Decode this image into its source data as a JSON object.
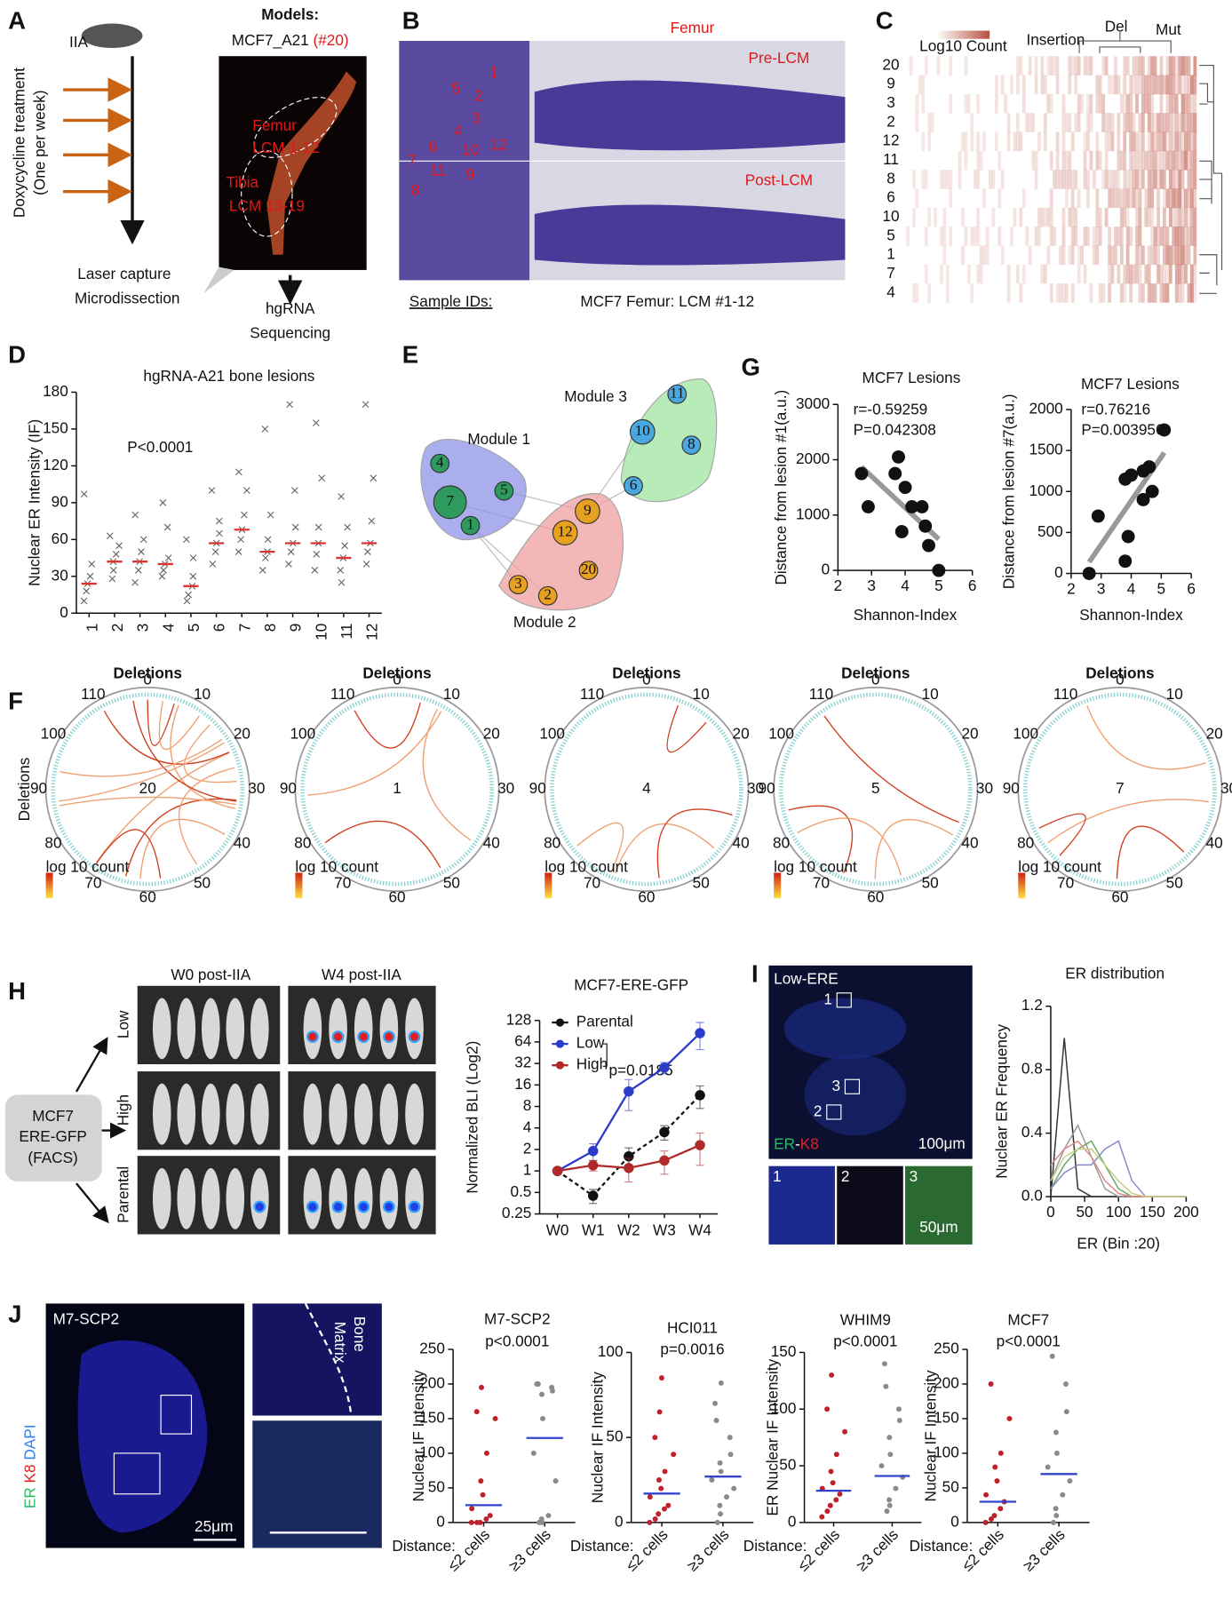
{
  "panel_labels": {
    "a": "A",
    "b": "B",
    "c": "C",
    "d": "D",
    "e": "E",
    "f": "F",
    "g": "G",
    "h": "H",
    "i": "I",
    "j": "J"
  },
  "panel_a": {
    "mouse_label": "IIA",
    "treatment": "Doxycycline treatment",
    "frequency": "(One per week)",
    "step1_line1": "Laser capture",
    "step1_line2": "Microdissection",
    "models_title": "Models:",
    "model_name": "MCF7_A21",
    "model_id": "(#20)",
    "femur_label": "Femur",
    "femur_lcm": "LCM 1-12",
    "tibia_label": "Tibia",
    "tibia_lcm": "LCM 13-19",
    "step2_line1": "hgRNA",
    "step2_line2": "Sequencing"
  },
  "panel_b": {
    "bone": "Femur",
    "pre": "Pre-LCM",
    "post": "Post-LCM",
    "sample_ids": "Sample IDs:",
    "caption": "MCF7 Femur: LCM #1-12",
    "lesions": [
      1,
      2,
      3,
      4,
      5,
      6,
      7,
      8,
      9,
      10,
      11,
      12
    ]
  },
  "panel_c": {
    "legend": "Log10 Count",
    "insertion": "Insertion",
    "deletion": "Del",
    "mutation": "Mut",
    "rows": [
      20,
      9,
      3,
      2,
      12,
      11,
      8,
      6,
      10,
      5,
      1,
      7,
      4
    ]
  },
  "panel_e": {
    "modules": [
      {
        "name": "Module 1",
        "color": "#8f94e6",
        "node_color": "#2e9a5e",
        "nodes": [
          4,
          7,
          5,
          1
        ]
      },
      {
        "name": "Module 2",
        "color": "#f0a0a0",
        "node_color": "#e8a020",
        "nodes": [
          9,
          12,
          3,
          2,
          20
        ]
      },
      {
        "name": "Module 3",
        "color": "#9fe59f",
        "node_color": "#4aa8e0",
        "nodes": [
          11,
          10,
          8,
          6
        ]
      }
    ]
  },
  "panel_f": {
    "side_label": "Deletions",
    "plot_title": "Deletions",
    "legend": "log 10 count",
    "scale_ticks": [
      0,
      10,
      20,
      30,
      40,
      50,
      60,
      70,
      80,
      90,
      100,
      110
    ],
    "samples": [
      20,
      1,
      4,
      5,
      7
    ]
  },
  "panel_h": {
    "w0": "W0 post-IIA",
    "w4": "W4 post-IIA",
    "rows": [
      "Low",
      "High",
      "Parental"
    ],
    "box_line1": "MCF7",
    "box_line2": "ERE-GFP",
    "box_line3": "(FACS)"
  },
  "panel_i": {
    "image_title": "Low-ERE",
    "insets": [
      "1",
      "2",
      "3"
    ],
    "stain_er": "ER",
    "stain_dash": "-",
    "stain_k8": "K8",
    "scale_large": "100μm",
    "scale_small": "50μm"
  },
  "panel_j": {
    "image_title": "M7-SCP2",
    "stain_er": "ER",
    "stain_k8": "K8",
    "stain_dapi": "DAPI",
    "scale": "25μm",
    "bone": "Bone",
    "matrix": "Matrix"
  },
  "chart_data": [
    {
      "type": "strip",
      "title": "hgRNA-A21 bone lesions",
      "ylabel": "Nuclear ER Intensity (IF)",
      "annotations": [
        "P<0.0001"
      ],
      "marker": "x",
      "point_color": "#666666",
      "line_color": "#dd3333",
      "categories": [
        "1",
        "2",
        "3",
        "4",
        "5",
        "6",
        "7",
        "8",
        "9",
        "10",
        "11",
        "12"
      ],
      "values": [
        24,
        42,
        42,
        40,
        22,
        57,
        68,
        50,
        57,
        57,
        45,
        57
      ],
      "points": [
        [
          10,
          18,
          24,
          30,
          40,
          97
        ],
        [
          28,
          35,
          42,
          48,
          55,
          63
        ],
        [
          25,
          35,
          42,
          50,
          60,
          80
        ],
        [
          30,
          35,
          40,
          45,
          70,
          90
        ],
        [
          10,
          15,
          22,
          30,
          45,
          60
        ],
        [
          40,
          50,
          57,
          65,
          75,
          100
        ],
        [
          50,
          60,
          68,
          80,
          100,
          115
        ],
        [
          35,
          45,
          50,
          60,
          80,
          150
        ],
        [
          40,
          50,
          57,
          70,
          100,
          170
        ],
        [
          35,
          48,
          57,
          70,
          110,
          155
        ],
        [
          25,
          35,
          45,
          55,
          70,
          95
        ],
        [
          40,
          50,
          57,
          75,
          110,
          170
        ]
      ],
      "ylim": [
        0,
        180
      ],
      "yticks": [
        0,
        30,
        60,
        90,
        120,
        150,
        180
      ]
    },
    {
      "type": "scatter",
      "title": "MCF7 Lesions",
      "annotations": [
        "r=-0.59259",
        "P=0.042308"
      ],
      "xlabel": "Shannon-Index",
      "ylabel": "Distance from lesion #1(a.u.)",
      "x": [
        2.7,
        2.9,
        3.7,
        3.8,
        3.9,
        4.0,
        4.2,
        4.5,
        4.6,
        4.7,
        5.0
      ],
      "y": [
        1750,
        1150,
        1750,
        2050,
        700,
        1500,
        1150,
        1150,
        800,
        450,
        0
      ],
      "xlim": [
        2,
        6
      ],
      "xticks": [
        2,
        3,
        4,
        5,
        6
      ],
      "ylim": [
        0,
        3000
      ],
      "yticks": [
        0,
        1000,
        2000,
        3000
      ]
    },
    {
      "type": "scatter",
      "title": "MCF7 Lesions",
      "annotations": [
        "r=0.76216",
        "P=0.003956"
      ],
      "xlabel": "Shannon-Index",
      "ylabel": "Distance from lesion #7(a.u.)",
      "x": [
        2.6,
        2.9,
        3.8,
        3.9,
        3.8,
        4.0,
        4.4,
        4.4,
        4.6,
        4.7,
        5.1
      ],
      "y": [
        0,
        700,
        150,
        450,
        1150,
        1200,
        1250,
        900,
        1300,
        1000,
        1750
      ],
      "xlim": [
        2,
        6
      ],
      "xticks": [
        2,
        3,
        4,
        5,
        6
      ],
      "ylim": [
        0,
        2000
      ],
      "yticks": [
        0,
        500,
        1000,
        1500,
        2000
      ]
    },
    {
      "type": "line",
      "title": "MCF7-ERE-GFP",
      "ylabel": "Normalized BLI (Log2)",
      "annotations": [
        "p=0.0185"
      ],
      "log_scale": true,
      "legend": "top-left",
      "markers": true,
      "categories": [
        "W0",
        "W1",
        "W2",
        "W3",
        "W4"
      ],
      "series": [
        {
          "name": "Parental",
          "color": "#111111",
          "dash": true,
          "values": [
            1,
            0.45,
            1.6,
            3.5,
            11.5
          ],
          "errors": [
            0,
            0.1,
            0.5,
            0.8,
            4
          ]
        },
        {
          "name": "Low",
          "color": "#2a3cc8",
          "dash": false,
          "values": [
            1,
            1.9,
            13,
            28,
            85
          ],
          "errors": [
            0,
            0.5,
            6,
            5,
            35
          ]
        },
        {
          "name": "High",
          "color": "#b02a2a",
          "dash": false,
          "values": [
            1,
            1.2,
            1.1,
            1.4,
            2.3
          ],
          "errors": [
            0,
            0.2,
            0.4,
            0.5,
            1.1
          ]
        }
      ],
      "ylim": [
        0.25,
        128
      ],
      "yticks": [
        0.25,
        0.5,
        1,
        2,
        4,
        8,
        16,
        32,
        64,
        128
      ]
    },
    {
      "type": "line",
      "title": "ER distribution",
      "xlabel": "ER (Bin :20)",
      "ylabel": "Nuclear ER Frequency",
      "markers": false,
      "x": [
        0,
        20,
        40,
        60,
        80,
        100,
        120,
        140,
        160,
        180,
        200
      ],
      "series": [
        {
          "color": "#333333",
          "values": [
            0,
            1.0,
            0.05,
            0,
            0,
            0,
            0,
            0,
            0,
            0,
            0
          ]
        },
        {
          "color": "#999999",
          "values": [
            0.1,
            0.3,
            0.45,
            0.25,
            0.05,
            0,
            0,
            0,
            0,
            0,
            0
          ]
        },
        {
          "color": "#66aa66",
          "values": [
            0.05,
            0.2,
            0.3,
            0.35,
            0.2,
            0.05,
            0,
            0,
            0,
            0,
            0
          ]
        },
        {
          "color": "#8888cc",
          "values": [
            0.05,
            0.15,
            0.2,
            0.2,
            0.3,
            0.35,
            0.1,
            0,
            0,
            0,
            0
          ]
        },
        {
          "color": "#dd8888",
          "values": [
            0.2,
            0.3,
            0.35,
            0.25,
            0.1,
            0.02,
            0,
            0,
            0,
            0,
            0
          ]
        },
        {
          "color": "#cccc88",
          "values": [
            0.1,
            0.25,
            0.3,
            0.3,
            0.2,
            0.1,
            0.02,
            0,
            0,
            0,
            0
          ]
        }
      ],
      "xlim": [
        0,
        200
      ],
      "xticks": [
        0,
        50,
        100,
        150,
        200
      ],
      "ylim": [
        0,
        1.2
      ],
      "yticks": [
        {
          "value": 0,
          "label": "0.0"
        },
        0.4,
        0.8,
        1.2
      ]
    },
    {
      "type": "strip",
      "title": "M7-SCP2",
      "annotations": [
        "p<0.0001"
      ],
      "ylabel": "Nuclear IF Intensity",
      "xlabel": "Distance:",
      "marker": "circle",
      "point_colors": [
        "#c0202a",
        "#8a8a8a"
      ],
      "line_color": "#3344cc",
      "categories": [
        "≤2 cells",
        "≥3 cells"
      ],
      "values": [
        25,
        122
      ],
      "points": [
        [
          0,
          0,
          0,
          5,
          10,
          20,
          40,
          60,
          100,
          150,
          160,
          195
        ],
        [
          0,
          0,
          5,
          10,
          60,
          100,
          150,
          185,
          190,
          195,
          200,
          200
        ]
      ],
      "ylim": [
        0,
        250
      ],
      "yticks": [
        0,
        50,
        100,
        150,
        200,
        250
      ]
    },
    {
      "type": "strip",
      "title": "HCI011",
      "annotations": [
        "p=0.0016"
      ],
      "ylabel": "Nuclear IF Intensity",
      "xlabel": "Distance:",
      "marker": "circle",
      "point_colors": [
        "#c0202a",
        "#8a8a8a"
      ],
      "line_color": "#3344cc",
      "categories": [
        "≤2 cells",
        "≥3 cells"
      ],
      "values": [
        17,
        27
      ],
      "points": [
        [
          0,
          2,
          5,
          8,
          10,
          15,
          20,
          25,
          30,
          40,
          50,
          65,
          85
        ],
        [
          0,
          5,
          10,
          15,
          20,
          25,
          30,
          35,
          40,
          50,
          60,
          70,
          82
        ]
      ],
      "ylim": [
        0,
        100
      ],
      "yticks": [
        0,
        50,
        100
      ]
    },
    {
      "type": "strip",
      "title": "WHIM9",
      "annotations": [
        "p<0.0001"
      ],
      "ylabel": "ER Nuclear IF Intensity",
      "xlabel": "Distance:",
      "marker": "circle",
      "point_colors": [
        "#c0202a",
        "#8a8a8a"
      ],
      "line_color": "#3344cc",
      "categories": [
        "≤2 cells",
        "≥3 cells"
      ],
      "values": [
        28,
        41
      ],
      "points": [
        [
          5,
          10,
          15,
          20,
          25,
          30,
          35,
          45,
          60,
          80,
          100,
          130
        ],
        [
          10,
          15,
          20,
          30,
          40,
          50,
          60,
          75,
          90,
          100,
          120,
          140
        ]
      ],
      "ylim": [
        0,
        150
      ],
      "yticks": [
        0,
        50,
        100,
        150
      ]
    },
    {
      "type": "strip",
      "title": "MCF7",
      "annotations": [
        "p<0.0001"
      ],
      "ylabel": "Nuclear IF Intensity",
      "xlabel": "Distance:",
      "marker": "circle",
      "point_colors": [
        "#c0202a",
        "#8a8a8a"
      ],
      "line_color": "#3344cc",
      "categories": [
        "≤2 cells",
        "≥3 cells"
      ],
      "values": [
        30,
        70
      ],
      "points": [
        [
          0,
          5,
          10,
          20,
          30,
          40,
          60,
          80,
          100,
          150,
          200
        ],
        [
          0,
          10,
          20,
          40,
          60,
          80,
          100,
          130,
          160,
          200,
          240
        ]
      ],
      "ylim": [
        0,
        250
      ],
      "yticks": [
        0,
        50,
        100,
        150,
        200,
        250
      ]
    }
  ]
}
